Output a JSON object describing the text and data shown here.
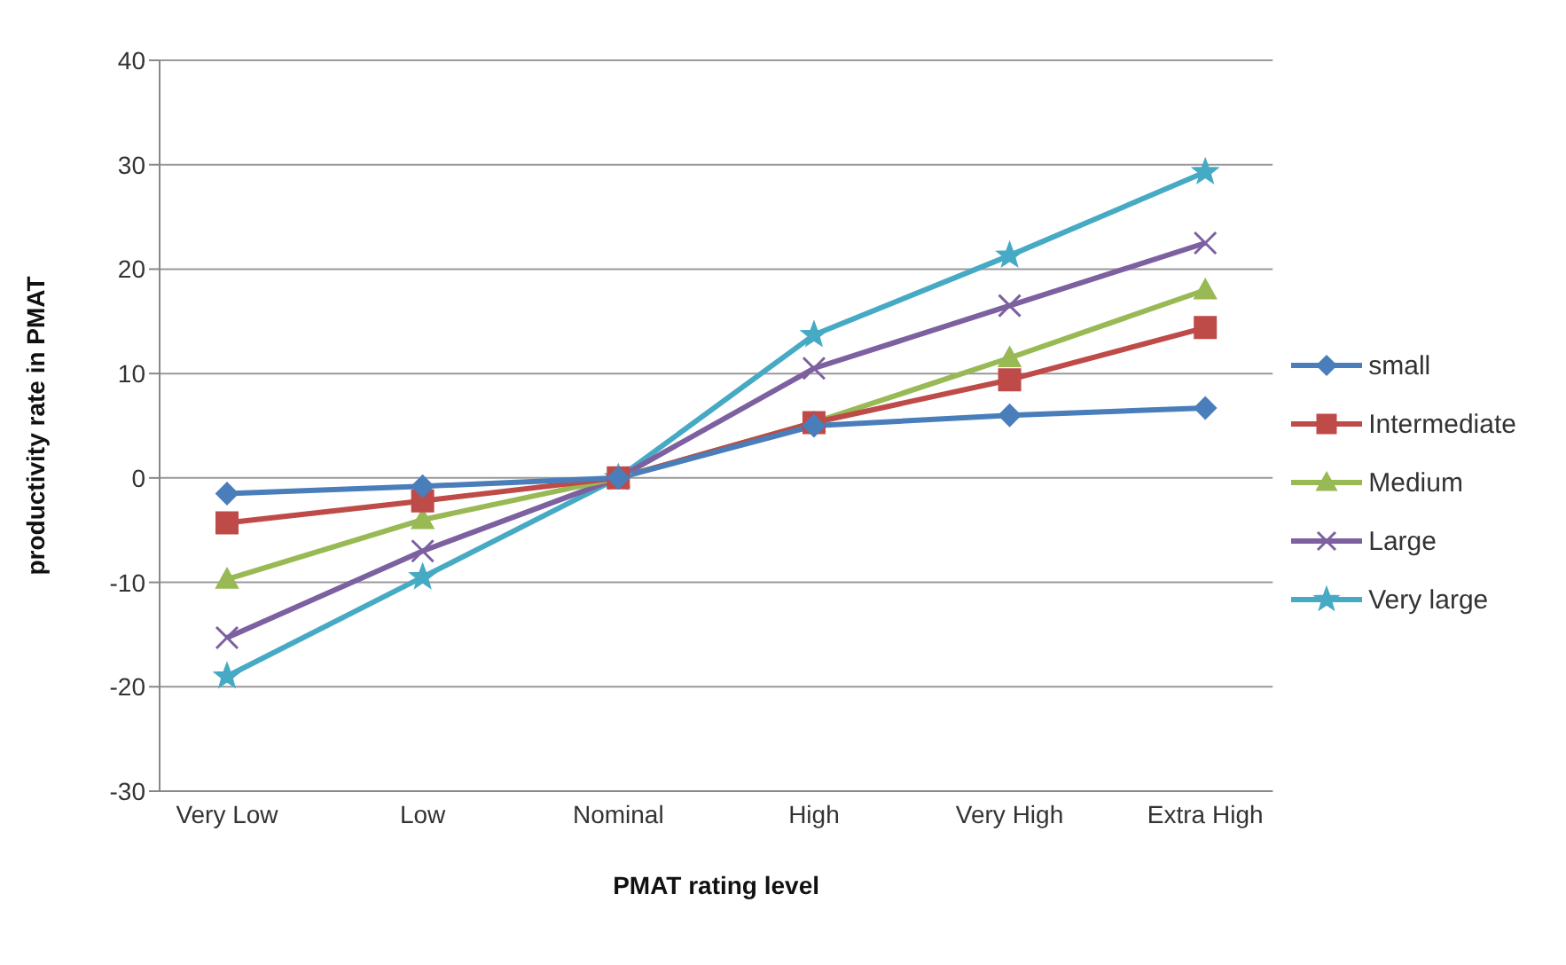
{
  "chart_data": {
    "type": "line",
    "xlabel": "PMAT rating level",
    "ylabel": "productivity rate in PMAT",
    "categories": [
      "Very Low",
      "Low",
      "Nominal",
      "High",
      "Very High",
      "Extra High"
    ],
    "series": [
      {
        "name": "small",
        "color": "#4a7ebb",
        "marker": "diamond",
        "values": [
          -1.5,
          -0.8,
          0,
          5,
          6,
          6.7
        ]
      },
      {
        "name": "Intermediate",
        "color": "#be4b48",
        "marker": "square",
        "values": [
          -4.3,
          -2.2,
          0,
          5.3,
          9.4,
          14.4
        ]
      },
      {
        "name": "Medium",
        "color": "#98b954",
        "marker": "triangle",
        "values": [
          -9.7,
          -4,
          0,
          5.3,
          11.5,
          18
        ]
      },
      {
        "name": "Large",
        "color": "#7d60a0",
        "marker": "cross",
        "values": [
          -15.3,
          -7,
          0,
          10.5,
          16.5,
          22.5
        ]
      },
      {
        "name": "Very large",
        "color": "#46aac5",
        "marker": "star",
        "values": [
          -19,
          -9.5,
          0,
          13.7,
          21.3,
          29.3
        ]
      }
    ],
    "ylim": [
      -30,
      40
    ],
    "yticks": [
      -30,
      -20,
      -10,
      0,
      10,
      20,
      30,
      40
    ],
    "grid": "y",
    "legend": "right"
  }
}
